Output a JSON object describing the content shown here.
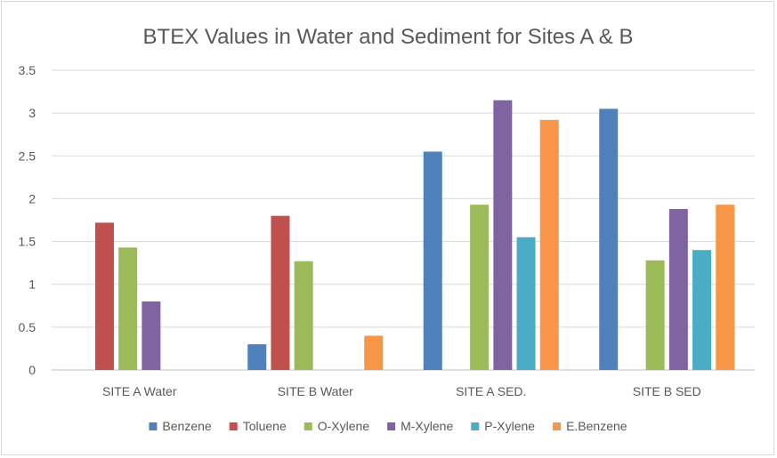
{
  "chart_data": {
    "type": "bar",
    "title": "BTEX Values in Water and Sediment for Sites A & B",
    "xlabel": "",
    "ylabel": "",
    "categories": [
      "SITE A Water",
      "SITE B Water",
      "SITE A SED.",
      "SITE B SED"
    ],
    "ylim": [
      0,
      3.5
    ],
    "yticks": [
      "0",
      "0.5",
      "1",
      "1.5",
      "2",
      "2.5",
      "3",
      "3.5"
    ],
    "grid": true,
    "legend_position": "bottom",
    "series": [
      {
        "name": "Benzene",
        "color": "#4f81bd",
        "values": [
          0,
          0.3,
          2.55,
          3.05
        ]
      },
      {
        "name": "Toluene",
        "color": "#c0504d",
        "values": [
          1.72,
          1.8,
          0,
          0
        ]
      },
      {
        "name": "O-Xylene",
        "color": "#9bbb59",
        "values": [
          1.43,
          1.27,
          1.93,
          1.28
        ]
      },
      {
        "name": "M-Xylene",
        "color": "#8064a2",
        "values": [
          0.8,
          0,
          3.15,
          1.88
        ]
      },
      {
        "name": "P-Xylene",
        "color": "#4bacc6",
        "values": [
          0,
          0,
          1.55,
          1.4
        ]
      },
      {
        "name": "E.Benzene",
        "color": "#f79646",
        "values": [
          0,
          0.4,
          2.92,
          1.93
        ]
      }
    ]
  }
}
